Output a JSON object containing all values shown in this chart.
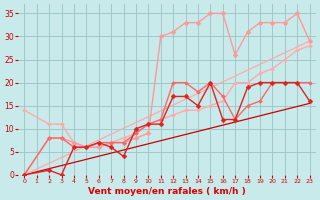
{
  "bg_color": "#c8eaea",
  "grid_color": "#a0c8c8",
  "xlabel": "Vent moyen/en rafales ( km/h )",
  "xlabel_color": "#dd0000",
  "tick_color": "#cc0000",
  "xlim": [
    -0.5,
    23.5
  ],
  "ylim": [
    0,
    37
  ],
  "xticks": [
    0,
    1,
    2,
    3,
    4,
    5,
    6,
    7,
    8,
    9,
    10,
    11,
    12,
    13,
    14,
    15,
    16,
    17,
    18,
    19,
    20,
    21,
    22,
    23
  ],
  "yticks": [
    0,
    5,
    10,
    15,
    20,
    25,
    30,
    35
  ],
  "lines": [
    {
      "x": [
        0,
        23
      ],
      "y": [
        0,
        15.5
      ],
      "color": "#cc0000",
      "lw": 0.9,
      "marker": null,
      "ms": 0,
      "zorder": 2
    },
    {
      "x": [
        0,
        23
      ],
      "y": [
        0,
        29.0
      ],
      "color": "#ffaaaa",
      "lw": 0.9,
      "marker": null,
      "ms": 0,
      "zorder": 2
    },
    {
      "x": [
        0,
        2,
        3,
        4,
        5,
        6,
        7,
        8,
        9,
        10,
        11,
        12,
        13,
        14,
        15,
        16,
        17,
        18,
        19,
        20,
        21,
        22,
        23
      ],
      "y": [
        14,
        11,
        11,
        7,
        6,
        6,
        7,
        8,
        9,
        11,
        12,
        13,
        14,
        14,
        15,
        16,
        20,
        20,
        22,
        23,
        25,
        27,
        28
      ],
      "color": "#ffaaaa",
      "lw": 1.0,
      "marker": "D",
      "ms": 2.0,
      "zorder": 3
    },
    {
      "x": [
        0,
        2,
        3,
        4,
        5,
        6,
        7,
        8,
        9,
        10,
        11,
        12,
        13,
        14,
        15,
        16,
        17,
        18,
        19,
        20,
        21,
        22,
        23
      ],
      "y": [
        0,
        8,
        8,
        7,
        6,
        6,
        7,
        7,
        8,
        9,
        30,
        31,
        33,
        33,
        35,
        35,
        26,
        31,
        33,
        33,
        33,
        35,
        29
      ],
      "color": "#ff9999",
      "lw": 1.0,
      "marker": "D",
      "ms": 2.5,
      "zorder": 3
    },
    {
      "x": [
        0,
        2,
        3,
        4,
        5,
        6,
        7,
        8,
        9,
        10,
        11,
        12,
        13,
        14,
        15,
        16,
        17,
        18,
        19,
        20,
        21,
        22,
        23
      ],
      "y": [
        0,
        1,
        0,
        6,
        6,
        7,
        6,
        4,
        10,
        11,
        11,
        17,
        17,
        15,
        20,
        12,
        12,
        19,
        20,
        20,
        20,
        20,
        16
      ],
      "color": "#dd2222",
      "lw": 1.0,
      "marker": "D",
      "ms": 2.5,
      "zorder": 4
    },
    {
      "x": [
        0,
        2,
        3,
        4,
        5,
        6,
        7,
        8,
        9,
        10,
        11,
        12,
        13,
        14,
        15,
        16,
        17,
        18,
        19,
        20,
        21,
        22,
        23
      ],
      "y": [
        0,
        8,
        8,
        6,
        6,
        7,
        7,
        7,
        9,
        11,
        12,
        20,
        20,
        18,
        20,
        17,
        12,
        15,
        16,
        20,
        20,
        20,
        20
      ],
      "color": "#ff6666",
      "lw": 1.0,
      "marker": "D",
      "ms": 2.0,
      "zorder": 3
    }
  ]
}
